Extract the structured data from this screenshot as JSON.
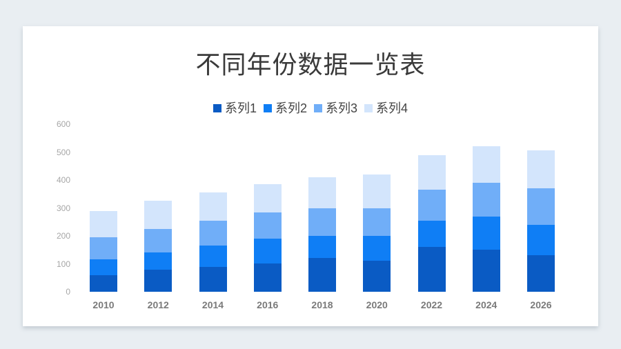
{
  "title": "不同年份数据一览表",
  "legend": [
    {
      "label": "系列1",
      "color": "#0a5bc4"
    },
    {
      "label": "系列2",
      "color": "#0f7ef5"
    },
    {
      "label": "系列3",
      "color": "#70aef8"
    },
    {
      "label": "系列4",
      "color": "#d3e5fc"
    }
  ],
  "y_ticks": [
    "600",
    "500",
    "400",
    "300",
    "200",
    "100",
    "0"
  ],
  "chart_data": {
    "type": "bar",
    "stacked": true,
    "title": "不同年份数据一览表",
    "xlabel": "",
    "ylabel": "",
    "ylim": [
      0,
      600
    ],
    "y_ticks": [
      0,
      100,
      200,
      300,
      400,
      500,
      600
    ],
    "grid": false,
    "legend_position": "top",
    "categories": [
      "2010",
      "2012",
      "2014",
      "2016",
      "2018",
      "2020",
      "2022",
      "2024",
      "2026"
    ],
    "series": [
      {
        "name": "系列1",
        "color": "#0a5bc4",
        "values": [
          60,
          80,
          90,
          100,
          120,
          110,
          160,
          150,
          130
        ]
      },
      {
        "name": "系列2",
        "color": "#0f7ef5",
        "values": [
          55,
          60,
          75,
          90,
          80,
          90,
          95,
          120,
          110
        ]
      },
      {
        "name": "系列3",
        "color": "#70aef8",
        "values": [
          80,
          85,
          90,
          95,
          100,
          100,
          110,
          120,
          130
        ]
      },
      {
        "name": "系列4",
        "color": "#d3e5fc",
        "values": [
          95,
          100,
          100,
          100,
          110,
          120,
          125,
          130,
          135
        ]
      }
    ]
  }
}
